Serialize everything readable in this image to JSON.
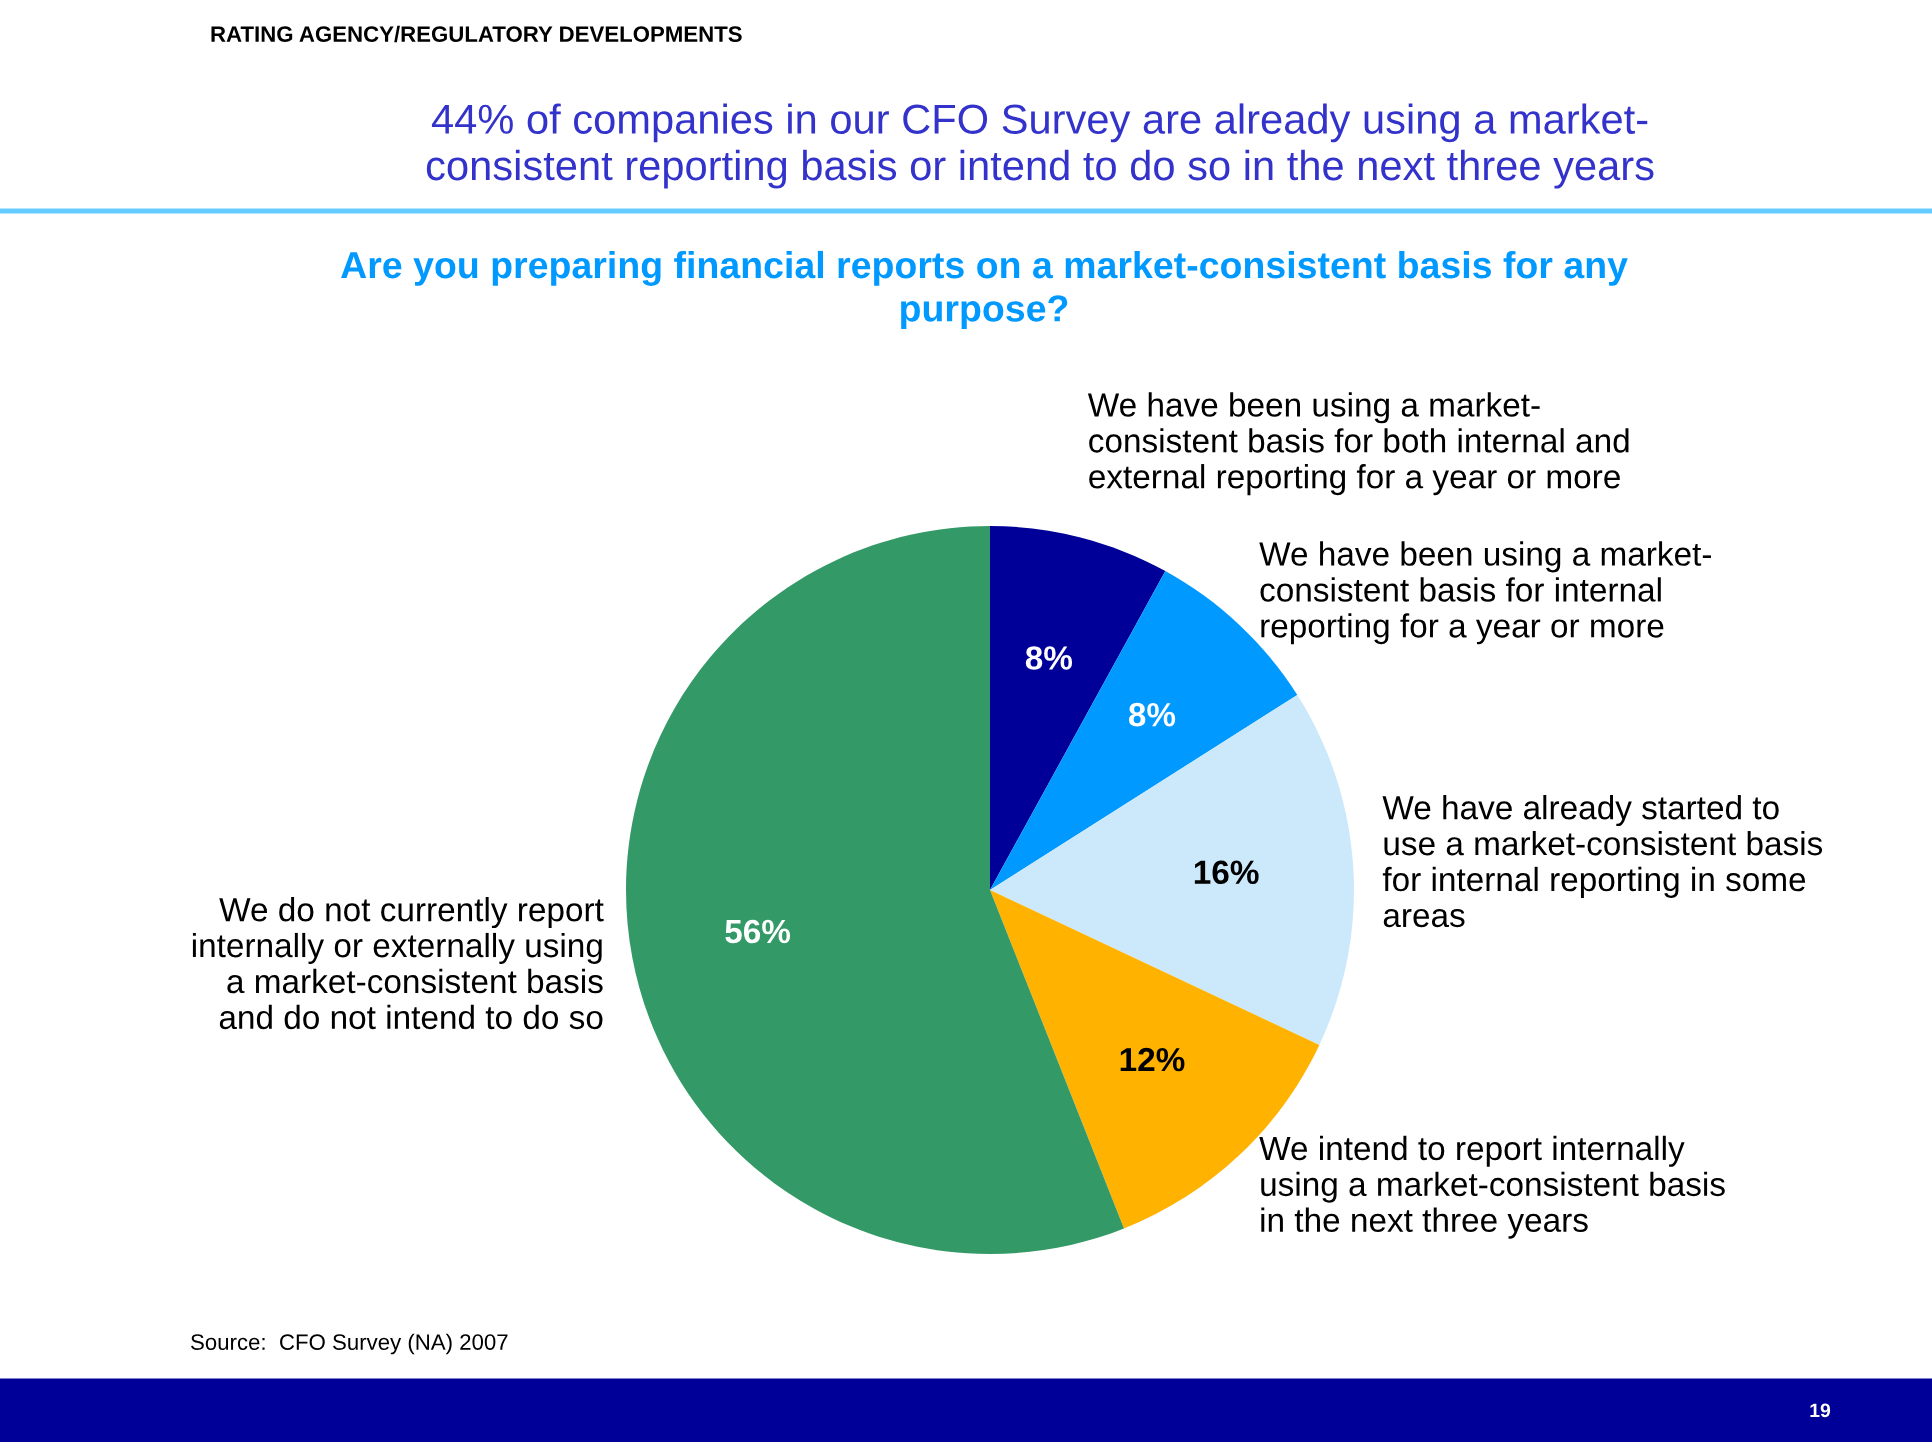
{
  "chart_data": {
    "type": "pie",
    "subtitle": "44% of companies in our CFO Survey are already using a market-\nconsistent reporting basis or intend to do so in the next three years",
    "title": "Are you preparing financial reports on a market-consistent basis for any\npurpose?",
    "categories": [
      "We have been using a market-\nconsistent basis for both internal and\nexternal reporting for a year or more",
      "We have been using a market-\nconsistent basis for internal\nreporting for a year or more",
      "We have already started to\nuse a market-consistent basis\nfor internal reporting in some\nareas",
      "We intend to report internally\nusing a market-consistent basis\nin the next three years",
      "We do not currently report\ninternally or externally using\na market-consistent basis\nand do not intend to do so"
    ],
    "values": [
      8,
      8,
      16,
      12,
      56
    ],
    "colors": [
      "#000099",
      "#0099ff",
      "#cce9fb",
      "#ffb300",
      "#339966"
    ],
    "value_labels": [
      "8%",
      "8%",
      "16%",
      "12%",
      "56%"
    ],
    "annotations": [
      "RATING AGENCY/REGULATORY DEVELOPMENTS",
      "Source:  CFO Survey (NA) 2007",
      "19"
    ]
  }
}
